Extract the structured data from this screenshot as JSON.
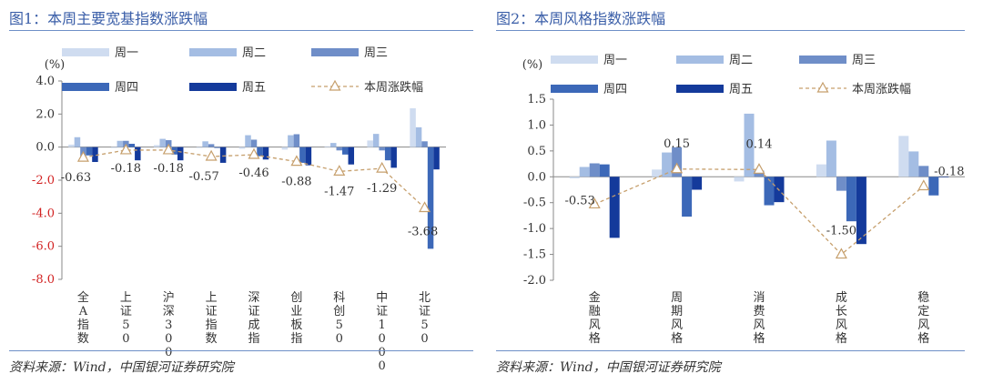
{
  "colors": {
    "mon": "#cfdcf0",
    "tue": "#a4bde3",
    "wed": "#6f8ec8",
    "thu": "#3c68b8",
    "fri": "#143a9b",
    "weekly": "#c69f6c",
    "title": "#3a5ea8",
    "negative_tick": "#d22222"
  },
  "left": {
    "title": "图1：本周主要宽基指数涨跌幅",
    "source": "资料来源：Wind，中国银河证券研究院"
  },
  "right": {
    "title": "图2：本周风格指数涨跌幅",
    "source": "资料来源：Wind，中国银河证券研究院"
  },
  "chart_data": [
    {
      "type": "bar",
      "title": "图1：本周主要宽基指数涨跌幅",
      "unit": "(%)",
      "categories": [
        "全A指数",
        "上证50",
        "沪深300",
        "上证指数",
        "深证成指",
        "创业板指",
        "科创50",
        "中证1000",
        "北证50"
      ],
      "ylim": [
        -8.0,
        4.0
      ],
      "yticks": [
        "4.0",
        "2.0",
        "0.0",
        "-2.0",
        "-4.0",
        "-6.0",
        "-8.0"
      ],
      "series": [
        {
          "name": "周一",
          "values": [
            0.15,
            -0.05,
            0.12,
            -0.05,
            -0.1,
            -0.15,
            0.05,
            0.4,
            2.35
          ]
        },
        {
          "name": "周二",
          "values": [
            0.6,
            0.38,
            0.5,
            0.35,
            0.72,
            0.72,
            0.25,
            0.8,
            1.2
          ]
        },
        {
          "name": "周三",
          "values": [
            -0.55,
            0.38,
            0.42,
            0.18,
            0.45,
            0.78,
            -0.2,
            -0.2,
            0.35
          ]
        },
        {
          "name": "周四",
          "values": [
            -0.5,
            0.2,
            -0.45,
            -0.05,
            -0.55,
            -0.95,
            -0.45,
            -0.8,
            -6.15
          ]
        },
        {
          "name": "周五",
          "values": [
            -0.9,
            -0.8,
            -0.8,
            -0.95,
            -0.75,
            -1.1,
            -1.05,
            -1.25,
            -1.35
          ]
        },
        {
          "name": "本周涨跌幅",
          "type": "line",
          "values": [
            -0.63,
            -0.18,
            -0.18,
            -0.57,
            -0.46,
            -0.88,
            -1.47,
            -1.29,
            -3.68
          ],
          "labels": [
            "-0.63",
            "-0.18",
            "-0.18",
            "-0.57",
            "-0.46",
            "-0.88",
            "-1.47",
            "-1.29",
            "-3.68"
          ]
        }
      ],
      "legend": "top"
    },
    {
      "type": "bar",
      "title": "图2：本周风格指数涨跌幅",
      "unit": "(%)",
      "categories": [
        "金融风格",
        "周期风格",
        "消费风格",
        "成长风格",
        "稳定风格"
      ],
      "ylim": [
        -2.0,
        1.5
      ],
      "yticks": [
        "1.5",
        "1.0",
        "0.5",
        "0.0",
        "-0.5",
        "-1.0",
        "-1.5",
        "-2.0"
      ],
      "series": [
        {
          "name": "周一",
          "values": [
            -0.03,
            0.14,
            -0.09,
            0.24,
            0.79
          ]
        },
        {
          "name": "周二",
          "values": [
            0.19,
            0.47,
            1.22,
            0.7,
            0.49
          ]
        },
        {
          "name": "周三",
          "values": [
            0.26,
            0.57,
            0.12,
            -0.27,
            0.21
          ]
        },
        {
          "name": "周四",
          "values": [
            0.24,
            -0.77,
            -0.55,
            -0.86,
            -0.36
          ]
        },
        {
          "name": "周五",
          "values": [
            -1.18,
            -0.25,
            -0.49,
            -1.3,
            0.0
          ]
        },
        {
          "name": "本周涨跌幅",
          "type": "line",
          "values": [
            -0.53,
            0.15,
            0.14,
            -1.5,
            -0.18
          ],
          "labels": [
            "-0.53",
            "0.15",
            "0.14",
            "-1.50",
            "-0.18"
          ]
        }
      ],
      "legend": "top"
    }
  ]
}
